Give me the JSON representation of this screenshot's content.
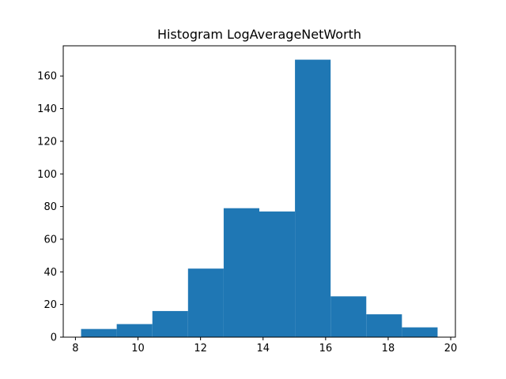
{
  "chart_data": {
    "type": "bar",
    "title": "Histogram LogAverageNetWorth",
    "xlabel": "",
    "ylabel": "",
    "bin_edges": [
      8.18,
      9.32,
      10.46,
      11.6,
      12.74,
      13.88,
      15.02,
      16.16,
      17.3,
      18.44,
      19.58
    ],
    "counts": [
      5,
      8,
      16,
      42,
      79,
      77,
      170,
      25,
      14,
      6
    ],
    "xlim": [
      7.61,
      20.15
    ],
    "ylim": [
      0,
      178.5
    ],
    "xticks": [
      8,
      10,
      12,
      14,
      16,
      18,
      20
    ],
    "xtick_labels": [
      "8",
      "10",
      "12",
      "14",
      "16",
      "18",
      "20"
    ],
    "yticks": [
      0,
      20,
      40,
      60,
      80,
      100,
      120,
      140,
      160
    ],
    "ytick_labels": [
      "0",
      "20",
      "40",
      "60",
      "80",
      "100",
      "120",
      "140",
      "160"
    ],
    "bar_color": "#1f77b4",
    "grid": false,
    "legend": "none"
  }
}
